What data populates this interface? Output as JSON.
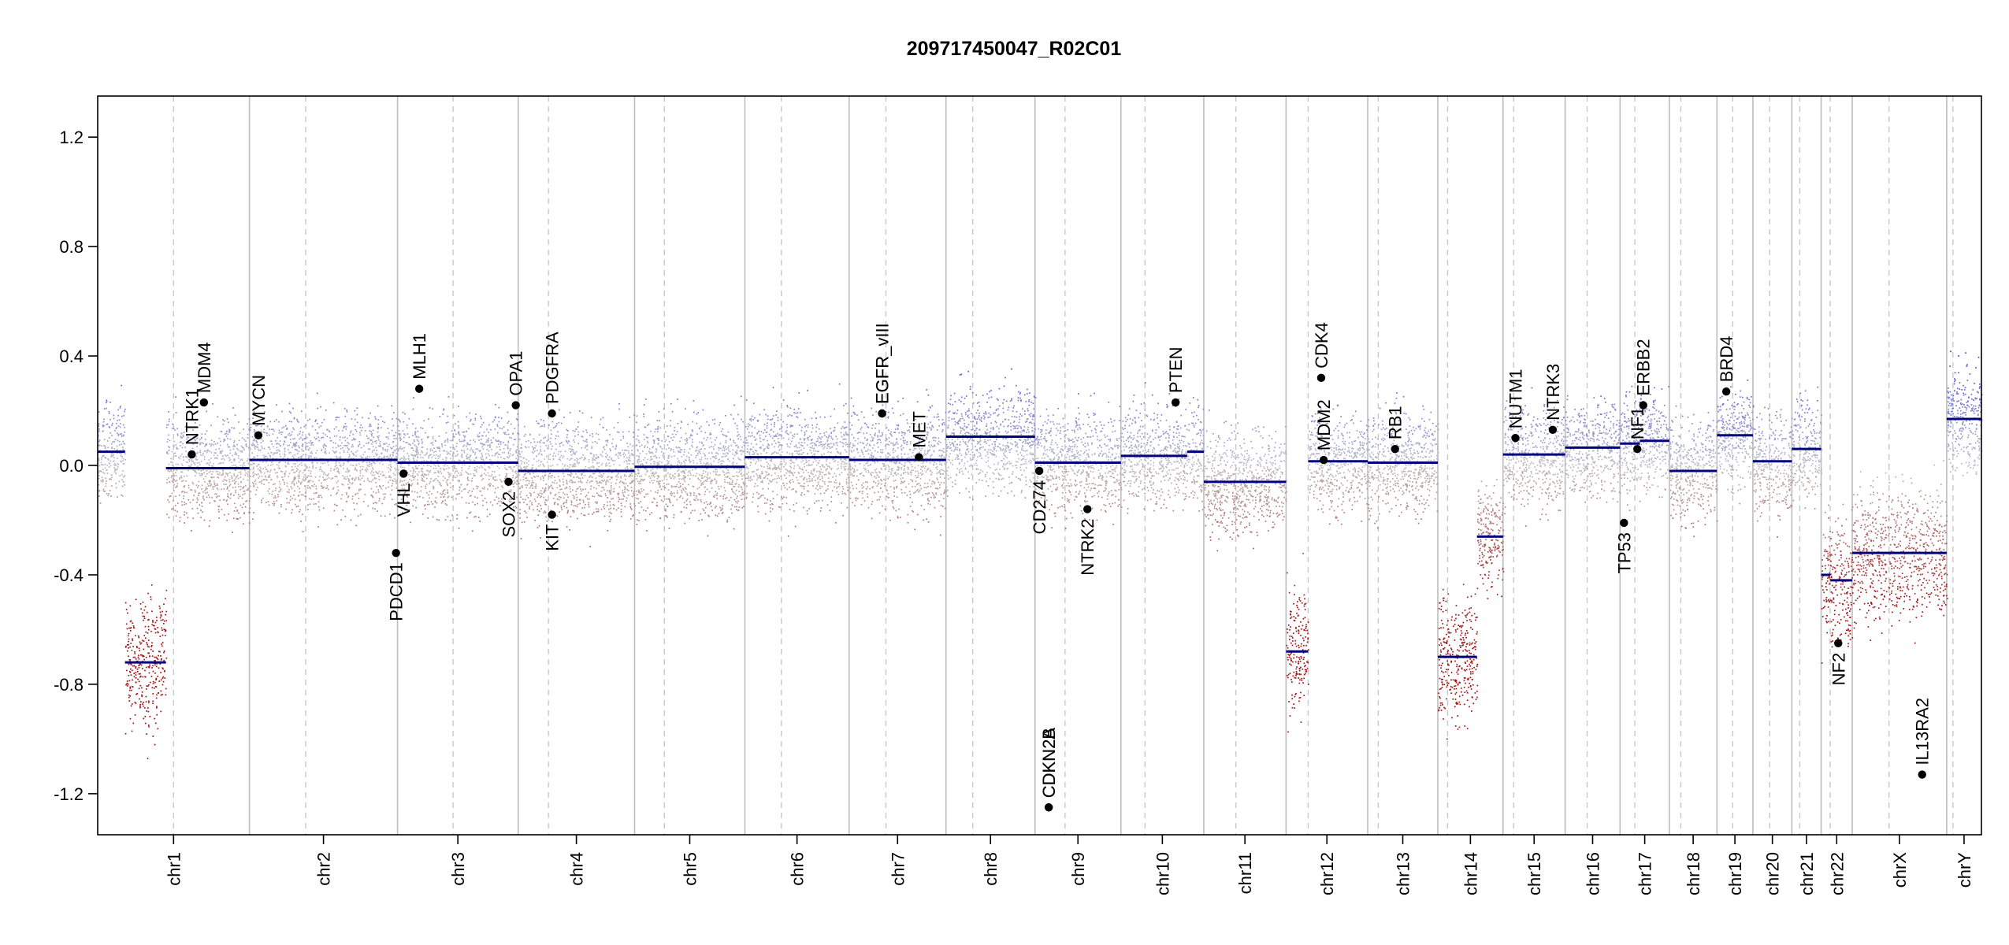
{
  "chart_data": {
    "type": "scatter",
    "title": "209717450047_R02C01",
    "xlabel": "",
    "ylabel": "",
    "ylim": [
      -1.35,
      1.35
    ],
    "yticks": [
      -1.2,
      -0.8,
      -0.4,
      0.0,
      0.4,
      0.8,
      1.2
    ],
    "ytick_labels": [
      "-1.2",
      "-0.8",
      "-0.4",
      "0.0",
      "0.4",
      "0.8",
      "1.2"
    ],
    "colors": {
      "gain": "#2b2bd0",
      "loss": "#b01818",
      "neutral": "#b0b0b0",
      "segment": "#00007f",
      "grid_solid": "#bdbdbd",
      "grid_dashed": "#c8c8c8"
    },
    "chromosomes": [
      {
        "name": "chr1",
        "size": 249,
        "cen": 0.5
      },
      {
        "name": "chr2",
        "size": 243,
        "cen": 0.38
      },
      {
        "name": "chr3",
        "size": 198,
        "cen": 0.46
      },
      {
        "name": "chr4",
        "size": 191,
        "cen": 0.26
      },
      {
        "name": "chr5",
        "size": 181,
        "cen": 0.27
      },
      {
        "name": "chr6",
        "size": 171,
        "cen": 0.35
      },
      {
        "name": "chr7",
        "size": 159,
        "cen": 0.38
      },
      {
        "name": "chr8",
        "size": 146,
        "cen": 0.3
      },
      {
        "name": "chr9",
        "size": 141,
        "cen": 0.35
      },
      {
        "name": "chr10",
        "size": 136,
        "cen": 0.29
      },
      {
        "name": "chr11",
        "size": 135,
        "cen": 0.39
      },
      {
        "name": "chr12",
        "size": 134,
        "cen": 0.27
      },
      {
        "name": "chr13",
        "size": 115,
        "cen": 0.15
      },
      {
        "name": "chr14",
        "size": 107,
        "cen": 0.15
      },
      {
        "name": "chr15",
        "size": 102,
        "cen": 0.17
      },
      {
        "name": "chr16",
        "size": 90,
        "cen": 0.4
      },
      {
        "name": "chr17",
        "size": 81,
        "cen": 0.3
      },
      {
        "name": "chr18",
        "size": 78,
        "cen": 0.24
      },
      {
        "name": "chr19",
        "size": 59,
        "cen": 0.44
      },
      {
        "name": "chr20",
        "size": 64,
        "cen": 0.43
      },
      {
        "name": "chr21",
        "size": 48,
        "cen": 0.27
      },
      {
        "name": "chr22",
        "size": 51,
        "cen": 0.29
      },
      {
        "name": "chrX",
        "size": 155,
        "cen": 0.39
      },
      {
        "name": "chrY",
        "size": 57,
        "cen": 0.18
      }
    ],
    "segments": [
      {
        "chr": "chr1",
        "start": 0.0,
        "end": 0.18,
        "value": 0.05
      },
      {
        "chr": "chr1",
        "start": 0.18,
        "end": 0.45,
        "value": -0.72
      },
      {
        "chr": "chr1",
        "start": 0.45,
        "end": 1.0,
        "value": -0.01
      },
      {
        "chr": "chr2",
        "start": 0.0,
        "end": 1.0,
        "value": 0.02
      },
      {
        "chr": "chr3",
        "start": 0.0,
        "end": 1.0,
        "value": 0.01
      },
      {
        "chr": "chr4",
        "start": 0.0,
        "end": 1.0,
        "value": -0.02
      },
      {
        "chr": "chr5",
        "start": 0.0,
        "end": 1.0,
        "value": -0.005
      },
      {
        "chr": "chr6",
        "start": 0.0,
        "end": 1.0,
        "value": 0.03
      },
      {
        "chr": "chr7",
        "start": 0.0,
        "end": 1.0,
        "value": 0.02
      },
      {
        "chr": "chr8",
        "start": 0.0,
        "end": 1.0,
        "value": 0.105
      },
      {
        "chr": "chr9",
        "start": 0.0,
        "end": 1.0,
        "value": 0.01
      },
      {
        "chr": "chr10",
        "start": 0.0,
        "end": 0.8,
        "value": 0.035
      },
      {
        "chr": "chr10",
        "start": 0.8,
        "end": 1.0,
        "value": 0.05
      },
      {
        "chr": "chr11",
        "start": 0.0,
        "end": 1.0,
        "value": -0.06
      },
      {
        "chr": "chr12",
        "start": 0.0,
        "end": 0.27,
        "value": -0.68
      },
      {
        "chr": "chr12",
        "start": 0.27,
        "end": 1.0,
        "value": 0.015
      },
      {
        "chr": "chr13",
        "start": 0.0,
        "end": 1.0,
        "value": 0.01
      },
      {
        "chr": "chr14",
        "start": 0.0,
        "end": 0.6,
        "value": -0.7
      },
      {
        "chr": "chr14",
        "start": 0.6,
        "end": 1.0,
        "value": -0.26
      },
      {
        "chr": "chr15",
        "start": 0.0,
        "end": 1.0,
        "value": 0.04
      },
      {
        "chr": "chr16",
        "start": 0.0,
        "end": 1.0,
        "value": 0.065
      },
      {
        "chr": "chr17",
        "start": 0.0,
        "end": 0.4,
        "value": 0.08
      },
      {
        "chr": "chr17",
        "start": 0.4,
        "end": 1.0,
        "value": 0.09
      },
      {
        "chr": "chr18",
        "start": 0.0,
        "end": 1.0,
        "value": -0.02
      },
      {
        "chr": "chr19",
        "start": 0.0,
        "end": 1.0,
        "value": 0.11
      },
      {
        "chr": "chr20",
        "start": 0.0,
        "end": 1.0,
        "value": 0.015
      },
      {
        "chr": "chr21",
        "start": 0.0,
        "end": 1.0,
        "value": 0.06
      },
      {
        "chr": "chr22",
        "start": 0.0,
        "end": 0.3,
        "value": -0.4
      },
      {
        "chr": "chr22",
        "start": 0.3,
        "end": 1.0,
        "value": -0.42
      },
      {
        "chr": "chrX",
        "start": 0.0,
        "end": 1.0,
        "value": -0.32
      },
      {
        "chr": "chrY",
        "start": 0.0,
        "end": 1.0,
        "value": 0.17
      }
    ],
    "genes": [
      {
        "name": "NTRK1",
        "chr": "chr1",
        "pos": 0.62,
        "value": 0.04,
        "label_dir": "up"
      },
      {
        "name": "MDM4",
        "chr": "chr1",
        "pos": 0.7,
        "value": 0.23,
        "label_dir": "up"
      },
      {
        "name": "MYCN",
        "chr": "chr2",
        "pos": 0.06,
        "value": 0.11,
        "label_dir": "up"
      },
      {
        "name": "VHL",
        "chr": "chr3",
        "pos": 0.05,
        "value": -0.03,
        "label_dir": "down"
      },
      {
        "name": "PDCD1",
        "chr": "chr2",
        "pos": 0.99,
        "value": -0.32,
        "label_dir": "down"
      },
      {
        "name": "MLH1",
        "chr": "chr3",
        "pos": 0.18,
        "value": 0.28,
        "label_dir": "up"
      },
      {
        "name": "SOX2",
        "chr": "chr3",
        "pos": 0.92,
        "value": -0.06,
        "label_dir": "down"
      },
      {
        "name": "OPA1",
        "chr": "chr3",
        "pos": 0.98,
        "value": 0.22,
        "label_dir": "up"
      },
      {
        "name": "PDGFRA",
        "chr": "chr4",
        "pos": 0.29,
        "value": 0.19,
        "label_dir": "up"
      },
      {
        "name": "KIT",
        "chr": "chr4",
        "pos": 0.29,
        "value": -0.18,
        "label_dir": "down"
      },
      {
        "name": "EGFR",
        "chr": "chr7",
        "pos": 0.34,
        "value": 0.19,
        "label_dir": "up"
      },
      {
        "name": "EGFR_vIII",
        "chr": "chr7",
        "pos": 0.34,
        "value": 0.19,
        "label_dir": "up"
      },
      {
        "name": "MET",
        "chr": "chr7",
        "pos": 0.72,
        "value": 0.03,
        "label_dir": "up"
      },
      {
        "name": "CD274",
        "chr": "chr9",
        "pos": 0.05,
        "value": -0.02,
        "label_dir": "down"
      },
      {
        "name": "CDKN2A",
        "chr": "chr9",
        "pos": 0.16,
        "value": -1.25,
        "label_dir": "up"
      },
      {
        "name": "CDKN2B",
        "chr": "chr9",
        "pos": 0.16,
        "value": -1.25,
        "label_dir": "up"
      },
      {
        "name": "NTRK2",
        "chr": "chr9",
        "pos": 0.61,
        "value": -0.16,
        "label_dir": "down"
      },
      {
        "name": "PTEN",
        "chr": "chr10",
        "pos": 0.66,
        "value": 0.23,
        "label_dir": "up"
      },
      {
        "name": "CDK4",
        "chr": "chr12",
        "pos": 0.43,
        "value": 0.32,
        "label_dir": "up"
      },
      {
        "name": "MDM2",
        "chr": "chr12",
        "pos": 0.46,
        "value": 0.02,
        "label_dir": "up"
      },
      {
        "name": "RB1",
        "chr": "chr13",
        "pos": 0.39,
        "value": 0.06,
        "label_dir": "up"
      },
      {
        "name": "NUTM1",
        "chr": "chr15",
        "pos": 0.2,
        "value": 0.1,
        "label_dir": "up"
      },
      {
        "name": "NTRK3",
        "chr": "chr15",
        "pos": 0.8,
        "value": 0.13,
        "label_dir": "up"
      },
      {
        "name": "TP53",
        "chr": "chr17",
        "pos": 0.08,
        "value": -0.21,
        "label_dir": "down"
      },
      {
        "name": "NF1",
        "chr": "chr17",
        "pos": 0.35,
        "value": 0.06,
        "label_dir": "up"
      },
      {
        "name": "ERBB2",
        "chr": "chr17",
        "pos": 0.47,
        "value": 0.22,
        "label_dir": "up"
      },
      {
        "name": "BRD4",
        "chr": "chr19",
        "pos": 0.26,
        "value": 0.27,
        "label_dir": "up"
      },
      {
        "name": "NF2",
        "chr": "chr22",
        "pos": 0.55,
        "value": -0.65,
        "label_dir": "down"
      },
      {
        "name": "IL13RA2",
        "chr": "chrX",
        "pos": 0.74,
        "value": -1.13,
        "label_dir": "up"
      }
    ]
  }
}
